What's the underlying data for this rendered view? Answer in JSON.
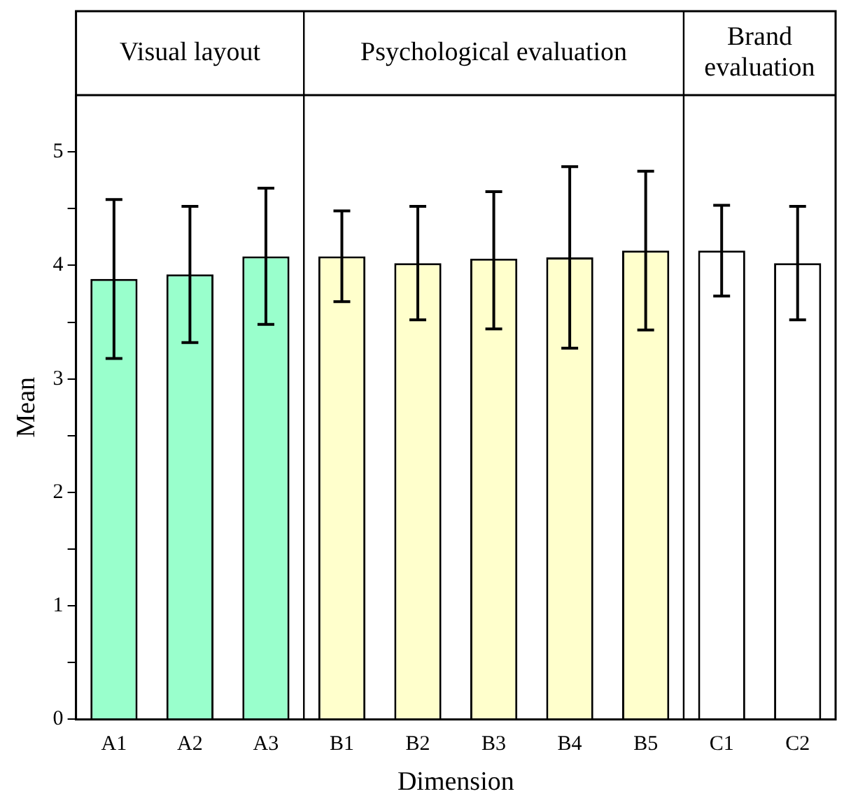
{
  "chart_data": {
    "type": "bar",
    "xlabel": "Dimension",
    "ylabel": "Mean",
    "categories": [
      "A1",
      "A2",
      "A3",
      "B1",
      "B2",
      "B3",
      "B4",
      "B5",
      "C1",
      "C2"
    ],
    "values": [
      3.88,
      3.92,
      4.08,
      4.08,
      4.02,
      4.06,
      4.07,
      4.13,
      4.13,
      4.02
    ],
    "errors": [
      [
        3.18,
        4.58
      ],
      [
        3.32,
        4.52
      ],
      [
        3.48,
        4.68
      ],
      [
        3.68,
        4.48
      ],
      [
        3.52,
        4.52
      ],
      [
        3.44,
        4.65
      ],
      [
        3.27,
        4.87
      ],
      [
        3.43,
        4.83
      ],
      [
        3.73,
        4.53
      ],
      [
        3.52,
        4.52
      ]
    ],
    "colors": [
      "#99ffcc",
      "#99ffcc",
      "#99ffcc",
      "#ffffcc",
      "#ffffcc",
      "#ffffcc",
      "#ffffcc",
      "#ffffcc",
      "#ffffff",
      "#ffffff"
    ],
    "ylim": [
      0,
      5.5
    ],
    "yticks": [
      0,
      {
        "value": 0.5,
        "label": null
      },
      1,
      {
        "value": 1.5,
        "label": null
      },
      2,
      {
        "value": 2.5,
        "label": null
      },
      3,
      {
        "value": 3.5,
        "label": null
      },
      4,
      {
        "value": 4.5,
        "label": null
      },
      5
    ],
    "annotations": [
      "Visual layout",
      "Psychological evaluation",
      "Brand evaluation"
    ],
    "grid": false,
    "legend": false
  }
}
